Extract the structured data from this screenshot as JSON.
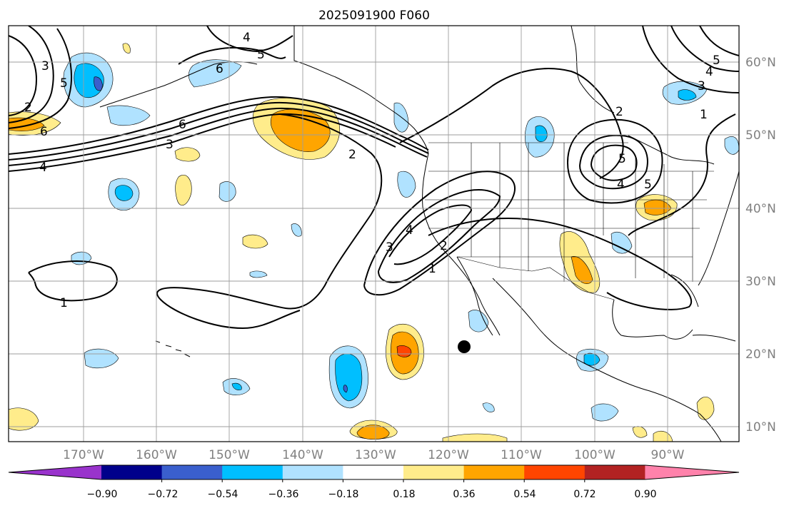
{
  "title": "2025091900 F060",
  "map": {
    "lon_labels": [
      "170°W",
      "160°W",
      "150°W",
      "140°W",
      "130°W",
      "120°W",
      "110°W",
      "100°W",
      "90°W"
    ],
    "lat_labels": [
      "60°N",
      "50°N",
      "40°N",
      "30°N",
      "20°N",
      "10°N"
    ],
    "grid": true,
    "label_color": "#808080"
  },
  "contour_labels": [
    "1",
    "2",
    "3",
    "4",
    "5",
    "6"
  ],
  "colorbar": {
    "tick_labels": [
      "−0.90",
      "−0.72",
      "−0.54",
      "−0.36",
      "−0.18",
      "0.18",
      "0.36",
      "0.54",
      "0.72",
      "0.90"
    ],
    "colors": [
      "#9933cc",
      "#00008b",
      "#3a5fcd",
      "#00bfff",
      "#b0e2ff",
      "#ffffff",
      "#ffec8b",
      "#ffa500",
      "#ff4500",
      "#b22222",
      "#ff82ab"
    ],
    "extend": "both"
  },
  "marker": {
    "type": "filled-circle",
    "color": "#000000"
  }
}
